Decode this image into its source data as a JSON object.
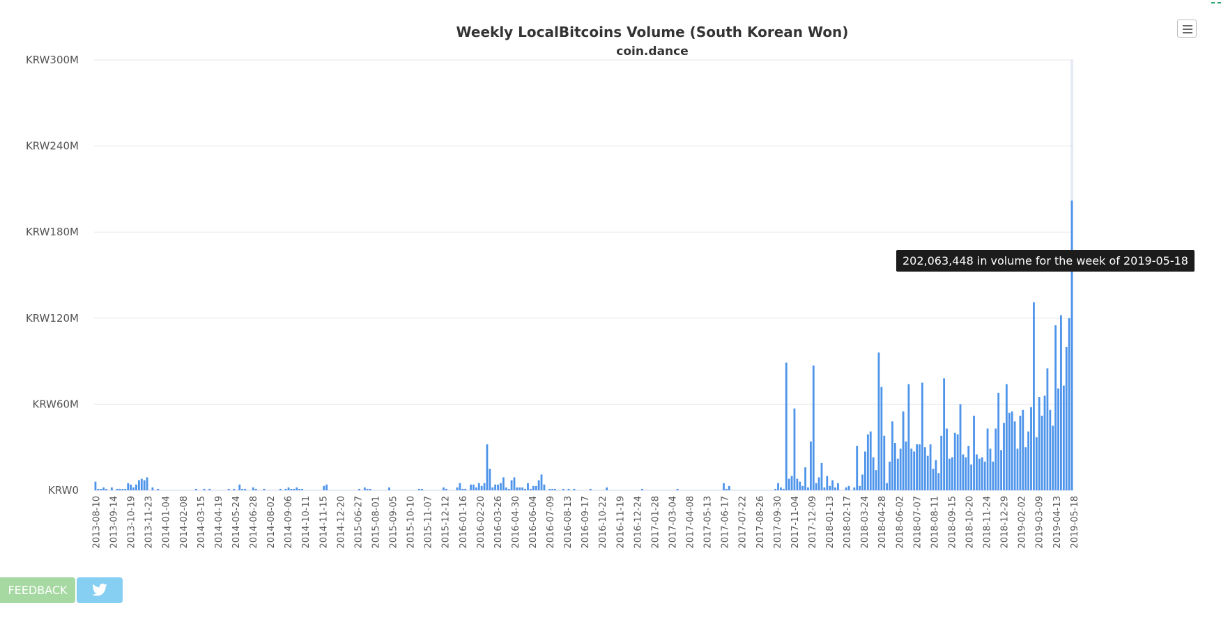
{
  "chart_data": {
    "type": "bar",
    "title": "Weekly LocalBitcoins Volume (South Korean Won)",
    "subtitle": "coin.dance",
    "y_ticks": [
      "KRW0",
      "KRW60M",
      "KRW120M",
      "KRW180M",
      "KRW240M",
      "KRW300M"
    ],
    "ylim": [
      0,
      300000000
    ],
    "grid": true,
    "color": "#4d94ea",
    "x_ticks": [
      "2013-08-10",
      "2013-09-14",
      "2013-10-19",
      "2013-11-23",
      "2014-01-04",
      "2014-02-08",
      "2014-03-15",
      "2014-04-19",
      "2014-05-24",
      "2014-06-28",
      "2014-08-02",
      "2014-09-06",
      "2014-10-11",
      "2014-11-15",
      "2014-12-20",
      "2015-06-27",
      "2015-08-01",
      "2015-09-05",
      "2015-10-10",
      "2015-11-07",
      "2015-12-12",
      "2016-01-16",
      "2016-02-20",
      "2016-03-26",
      "2016-04-30",
      "2016-06-04",
      "2016-07-09",
      "2016-08-13",
      "2016-09-17",
      "2016-10-22",
      "2016-11-19",
      "2016-12-24",
      "2017-01-28",
      "2017-03-04",
      "2017-04-08",
      "2017-05-13",
      "2017-06-17",
      "2017-07-22",
      "2017-08-26",
      "2017-09-30",
      "2017-11-04",
      "2017-12-09",
      "2018-01-13",
      "2018-02-17",
      "2018-03-24",
      "2018-04-28",
      "2018-06-02",
      "2018-07-07",
      "2018-08-11",
      "2018-09-15",
      "2018-10-20",
      "2018-11-24",
      "2018-12-29",
      "2019-02-02",
      "2019-03-09",
      "2019-04-13",
      "2019-05-18"
    ],
    "values_millions": [
      6,
      1,
      1,
      2,
      1,
      0,
      2,
      0,
      1,
      1,
      1,
      1,
      5,
      4,
      2,
      4,
      7,
      8,
      7,
      9,
      0,
      2,
      0,
      1,
      0,
      0,
      0,
      0,
      0,
      0,
      0,
      0,
      0,
      0,
      0,
      0,
      0,
      1,
      0,
      0,
      1,
      0,
      1,
      0,
      0,
      0,
      0,
      0,
      0,
      1,
      0,
      1,
      0,
      4,
      1,
      1,
      0,
      0,
      2,
      1,
      0,
      0,
      1,
      0,
      0,
      0,
      0,
      0,
      1,
      0,
      1,
      2,
      1,
      1,
      2,
      1,
      1,
      0,
      0,
      0,
      0,
      0,
      0,
      0,
      3,
      4,
      0,
      0,
      0,
      0,
      0,
      0,
      0,
      0,
      0,
      0,
      0,
      1,
      0,
      2,
      1,
      1,
      0,
      0,
      0,
      0,
      0,
      0,
      2,
      0,
      0,
      0,
      0,
      0,
      0,
      0,
      0,
      0,
      0,
      1,
      1,
      0,
      0,
      0,
      0,
      0,
      0,
      0,
      2,
      1,
      0,
      0,
      0,
      2,
      5,
      1,
      1,
      0,
      4,
      4,
      2,
      5,
      3,
      5,
      32,
      15,
      2,
      4,
      4,
      5,
      9,
      2,
      1,
      7,
      9,
      2,
      2,
      2,
      1,
      5,
      1,
      3,
      3,
      7,
      11,
      4,
      0,
      1,
      1,
      1,
      0,
      0,
      1,
      0,
      1,
      0,
      1,
      0,
      0,
      0,
      0,
      0,
      1,
      0,
      0,
      0,
      0,
      0,
      2,
      0,
      0,
      0,
      0,
      0,
      0,
      0,
      0,
      0,
      0,
      0,
      0,
      1,
      0,
      0,
      0,
      0,
      0,
      0,
      0,
      0,
      0,
      0,
      0,
      0,
      1,
      0,
      0,
      0,
      0,
      0,
      0,
      0,
      0,
      0,
      0,
      0,
      0,
      0,
      0,
      0,
      0,
      5,
      1,
      3,
      0,
      0,
      0,
      0,
      0,
      0,
      0,
      0,
      0,
      0,
      0,
      0,
      0,
      0,
      0,
      0,
      1,
      5,
      2,
      1,
      89,
      8,
      10,
      57,
      8,
      6,
      3,
      16,
      2,
      34,
      87,
      5,
      9,
      19,
      2,
      10,
      3,
      7,
      2,
      5,
      0,
      0,
      2,
      3,
      0,
      2,
      31,
      3,
      11,
      27,
      39,
      41,
      23,
      14,
      96,
      72,
      38,
      5,
      20,
      48,
      33,
      22,
      29,
      55,
      34,
      74,
      29,
      27,
      32,
      32,
      75,
      30,
      24,
      32,
      15,
      21,
      12,
      38,
      78,
      43,
      22,
      23,
      40,
      39,
      60,
      25,
      23,
      31,
      18,
      52,
      25,
      22,
      23,
      20,
      43,
      29,
      20,
      43,
      68,
      28,
      47,
      74,
      54,
      55,
      48,
      29,
      52,
      56,
      30,
      41,
      58,
      131,
      37,
      65,
      52,
      66,
      85,
      56,
      45,
      115,
      71,
      122,
      73,
      100,
      120,
      202
    ],
    "highlight": {
      "date": "2019-05-18",
      "volume": 202063448
    }
  },
  "tooltip": {
    "text": "202,063,448 in volume for the week of 2019-05-18"
  },
  "buttons": {
    "feedback_label": "FEEDBACK",
    "menu_icon": "hamburger-menu-icon",
    "twitter_icon": "twitter-bird-icon"
  }
}
